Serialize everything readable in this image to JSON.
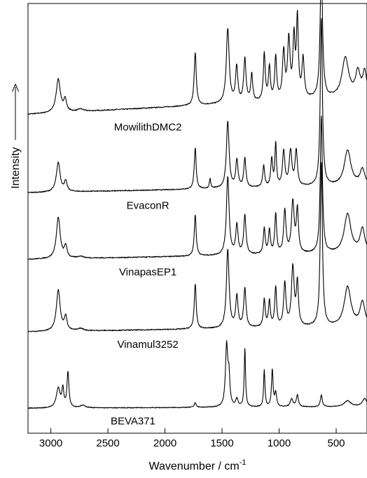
{
  "chart_data": {
    "type": "line",
    "title": "",
    "xlabel": "Wavenumber / cm",
    "xlabel_superscript": "-1",
    "ylabel": "Intensity",
    "xlim": [
      3200,
      230
    ],
    "x_reversed": true,
    "xticks": [
      3000,
      2500,
      2000,
      1500,
      1000,
      500
    ],
    "xtick_labels": [
      "3000",
      "2500",
      "2000",
      "1500",
      "1000",
      "500"
    ],
    "y_ticks_shown": false,
    "grid": false,
    "legend": "none",
    "series_color": "#000000",
    "series": [
      {
        "name": "MowilithDMC2",
        "baseline": 0.76,
        "slope": 0.045,
        "noise": 0.0025,
        "peaks": [
          [
            2935,
            0.085,
            22
          ],
          [
            2875,
            0.03,
            15
          ],
          [
            2740,
            0.006,
            30
          ],
          [
            1735,
            0.135,
            11
          ],
          [
            1450,
            0.19,
            15
          ],
          [
            1372,
            0.09,
            12
          ],
          [
            1300,
            0.11,
            12
          ],
          [
            1240,
            0.07,
            10
          ],
          [
            1130,
            0.12,
            10
          ],
          [
            1085,
            0.085,
            10
          ],
          [
            1030,
            0.11,
            10
          ],
          [
            960,
            0.12,
            12
          ],
          [
            915,
            0.15,
            13
          ],
          [
            870,
            0.15,
            11
          ],
          [
            840,
            0.2,
            10
          ],
          [
            790,
            0.1,
            12
          ],
          [
            630,
            0.35,
            12
          ],
          [
            420,
            0.1,
            35
          ],
          [
            310,
            0.06,
            25
          ],
          [
            250,
            0.06,
            20
          ]
        ]
      },
      {
        "name": "EvaconR",
        "baseline": 0.56,
        "slope": 0.018,
        "noise": 0.0025,
        "peaks": [
          [
            2935,
            0.075,
            20
          ],
          [
            2870,
            0.025,
            14
          ],
          [
            1735,
            0.105,
            10
          ],
          [
            1605,
            0.025,
            7
          ],
          [
            1450,
            0.17,
            14
          ],
          [
            1370,
            0.07,
            12
          ],
          [
            1300,
            0.075,
            11
          ],
          [
            1135,
            0.055,
            10
          ],
          [
            1065,
            0.07,
            10
          ],
          [
            1030,
            0.11,
            8
          ],
          [
            960,
            0.09,
            12
          ],
          [
            900,
            0.09,
            14
          ],
          [
            850,
            0.09,
            12
          ],
          [
            630,
            0.43,
            11
          ],
          [
            400,
            0.09,
            35
          ],
          [
            270,
            0.04,
            25
          ]
        ]
      },
      {
        "name": "VinapasEP1",
        "baseline": 0.39,
        "slope": 0.016,
        "noise": 0.0025,
        "peaks": [
          [
            2935,
            0.105,
            20
          ],
          [
            2870,
            0.03,
            14
          ],
          [
            2740,
            0.005,
            30
          ],
          [
            1735,
            0.105,
            10
          ],
          [
            1450,
            0.2,
            14
          ],
          [
            1370,
            0.075,
            12
          ],
          [
            1300,
            0.1,
            12
          ],
          [
            1130,
            0.065,
            10
          ],
          [
            1085,
            0.06,
            10
          ],
          [
            1030,
            0.1,
            10
          ],
          [
            950,
            0.11,
            12
          ],
          [
            880,
            0.13,
            14
          ],
          [
            840,
            0.11,
            11
          ],
          [
            630,
            0.35,
            11
          ],
          [
            400,
            0.1,
            35
          ],
          [
            270,
            0.06,
            25
          ]
        ]
      },
      {
        "name": "Vinamul3252",
        "baseline": 0.205,
        "slope": 0.014,
        "noise": 0.0025,
        "peaks": [
          [
            2935,
            0.105,
            20
          ],
          [
            2870,
            0.035,
            14
          ],
          [
            2740,
            0.006,
            30
          ],
          [
            1735,
            0.115,
            10
          ],
          [
            1450,
            0.2,
            14
          ],
          [
            1370,
            0.08,
            12
          ],
          [
            1300,
            0.1,
            12
          ],
          [
            1130,
            0.07,
            10
          ],
          [
            1085,
            0.065,
            10
          ],
          [
            1030,
            0.1,
            10
          ],
          [
            950,
            0.11,
            12
          ],
          [
            880,
            0.15,
            14
          ],
          [
            840,
            0.11,
            11
          ],
          [
            630,
            0.42,
            11
          ],
          [
            400,
            0.1,
            35
          ],
          [
            270,
            0.06,
            25
          ]
        ]
      },
      {
        "name": "BEVA371",
        "baseline": 0.01,
        "slope": 0.004,
        "noise": 0.002,
        "peaks": [
          [
            2935,
            0.05,
            20
          ],
          [
            2895,
            0.045,
            10
          ],
          [
            2850,
            0.09,
            10
          ],
          [
            2720,
            0.006,
            30
          ],
          [
            1735,
            0.012,
            10
          ],
          [
            1460,
            0.155,
            12
          ],
          [
            1440,
            0.07,
            10
          ],
          [
            1370,
            0.02,
            12
          ],
          [
            1300,
            0.15,
            7
          ],
          [
            1130,
            0.095,
            7
          ],
          [
            1060,
            0.095,
            8
          ],
          [
            1030,
            0.035,
            10
          ],
          [
            890,
            0.02,
            14
          ],
          [
            840,
            0.03,
            11
          ],
          [
            630,
            0.03,
            10
          ],
          [
            400,
            0.015,
            35
          ],
          [
            250,
            0.02,
            25
          ]
        ]
      }
    ]
  }
}
